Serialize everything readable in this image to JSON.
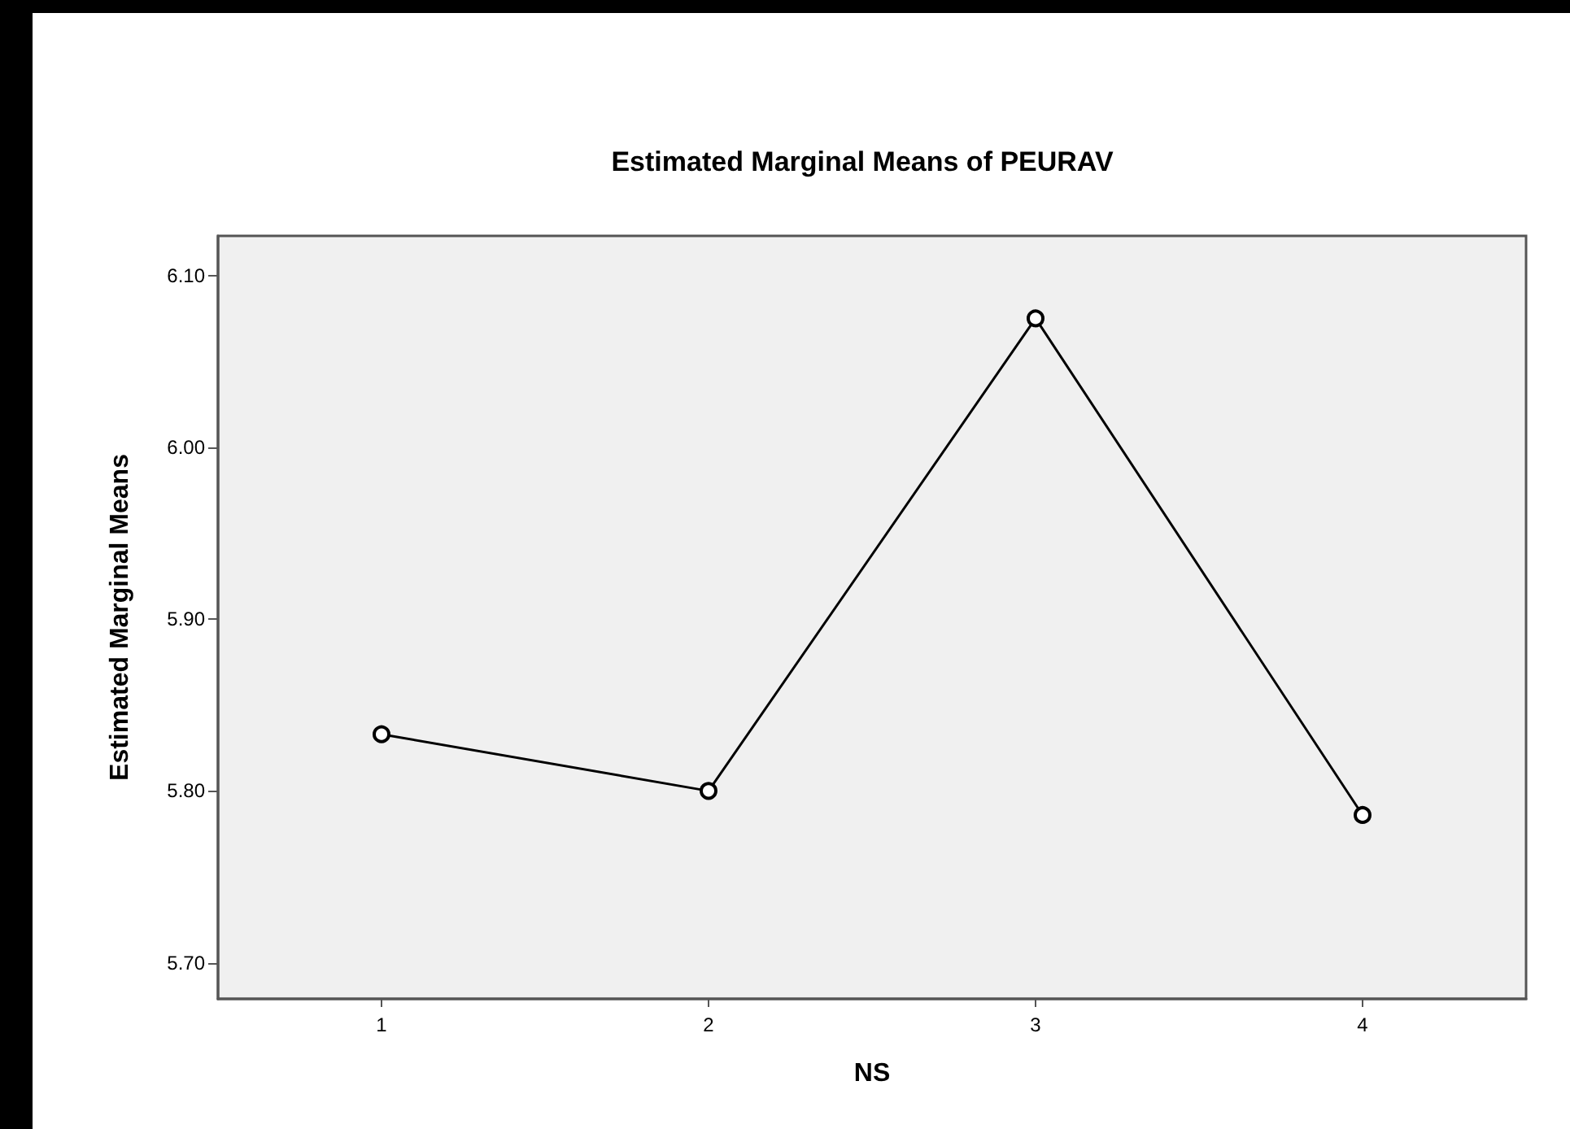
{
  "chart_data": {
    "type": "line",
    "title": "Estimated Marginal Means of PEURAV",
    "xlabel": "NS",
    "ylabel": "Estimated Marginal Means",
    "categories": [
      "1",
      "2",
      "3",
      "4"
    ],
    "series": [
      {
        "color": "#000000",
        "values": [
          5.833,
          5.8,
          6.075,
          5.786
        ]
      }
    ],
    "ylim": [
      5.679,
      6.123
    ],
    "yticks": [
      {
        "value": 5.7,
        "label": "5.70"
      },
      {
        "value": 5.8,
        "label": "5.80"
      },
      {
        "value": 5.9,
        "label": "5.90"
      },
      {
        "value": 6.0,
        "label": "6.00"
      },
      {
        "value": 6.1,
        "label": "6.10"
      }
    ],
    "grid": false,
    "marker": "circle",
    "line_style": "solid"
  }
}
